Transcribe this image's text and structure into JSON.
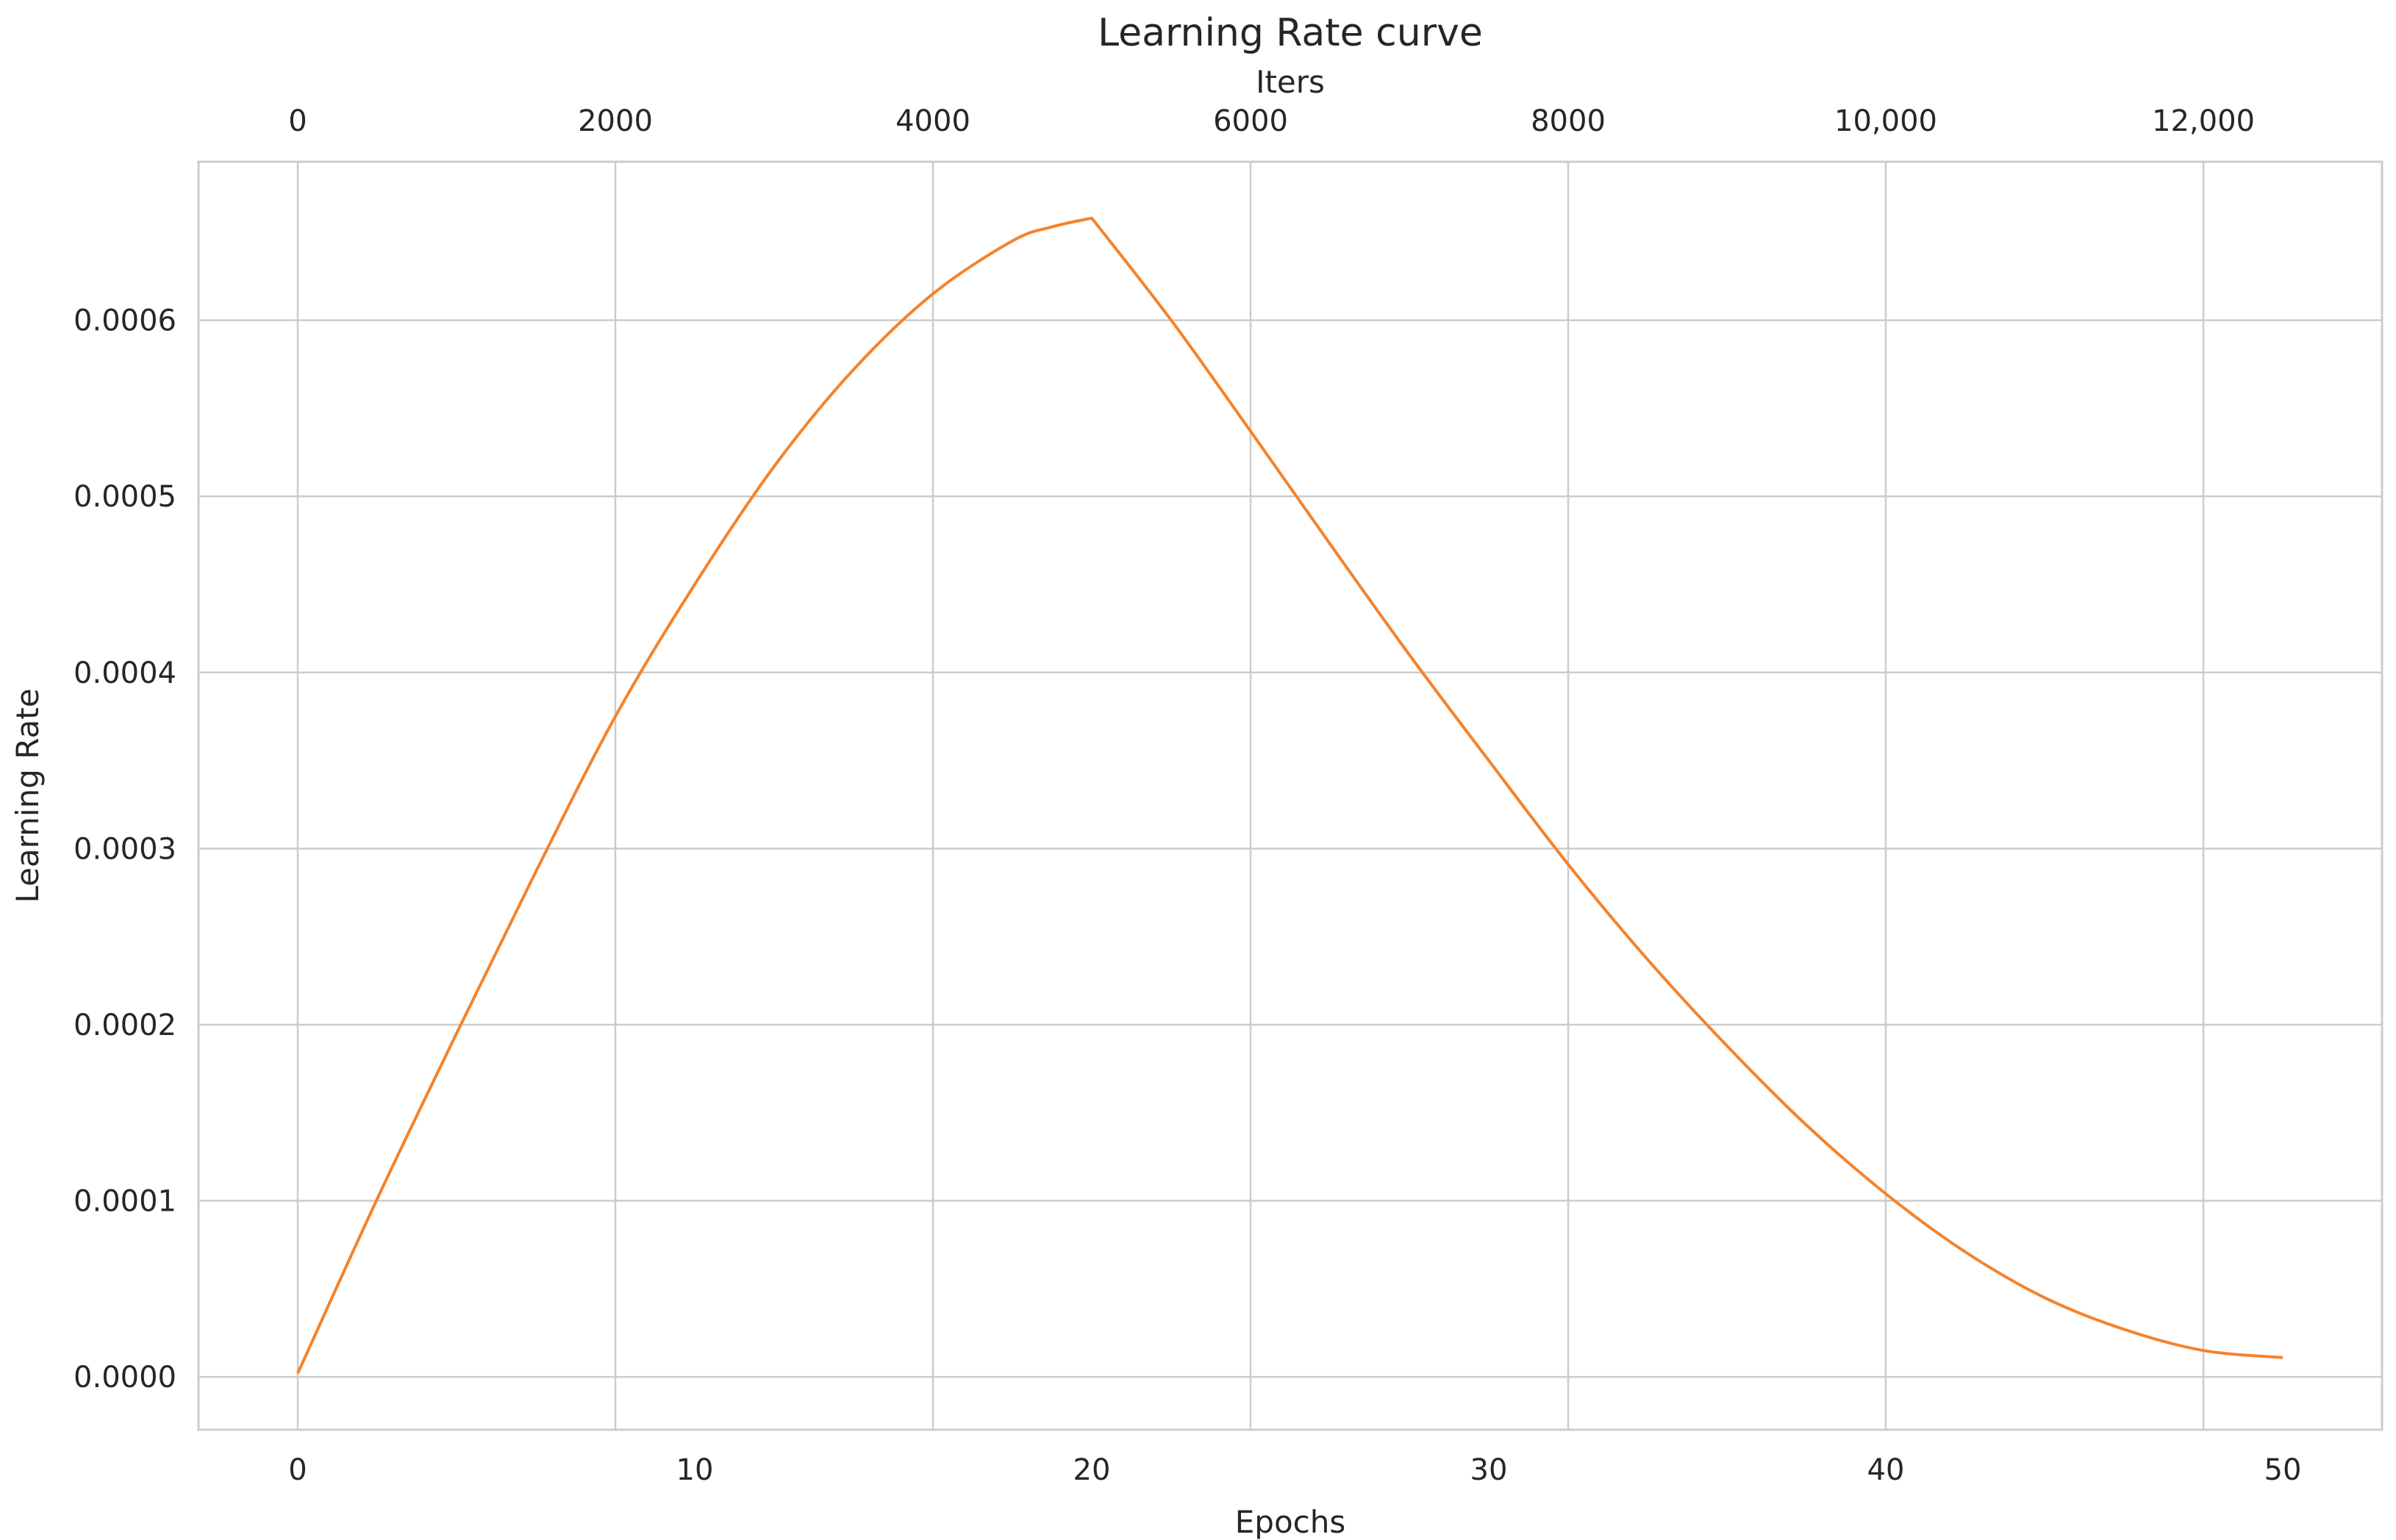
{
  "chart_data": {
    "type": "line",
    "title": "Learning Rate curve",
    "xlabel": "Epochs",
    "x2label": "Iters",
    "ylabel": "Learning Rate",
    "xlim": [
      -2.5,
      52.5
    ],
    "x2lim": [
      -625,
      13125
    ],
    "ylim": [
      -3e-05,
      0.00069
    ],
    "x_ticks": [
      0,
      10,
      20,
      30,
      40,
      50
    ],
    "x_tick_labels": [
      "0",
      "10",
      "20",
      "30",
      "40",
      "50"
    ],
    "x2_ticks": [
      0,
      2000,
      4000,
      6000,
      8000,
      10000,
      12000
    ],
    "x2_tick_labels": [
      "0",
      "2000",
      "4000",
      "6000",
      "8000",
      "10,000",
      "12,000"
    ],
    "y_ticks": [
      0,
      0.0001,
      0.0002,
      0.0003,
      0.0004,
      0.0005,
      0.0006
    ],
    "y_tick_labels": [
      "0.0000",
      "0.0001",
      "0.0002",
      "0.0003",
      "0.0004",
      "0.0005",
      "0.0006"
    ],
    "grid": true,
    "line_color": "#F5822A",
    "grid_color": "#CCCCCC",
    "series": [
      {
        "x": [
          0,
          2,
          4,
          6,
          8,
          10,
          12,
          14,
          16,
          18,
          19,
          20,
          22,
          24,
          26,
          28,
          30,
          32,
          34,
          36,
          38,
          40,
          42,
          44,
          46,
          48,
          50
        ],
        "y": [
          2e-06,
          0.000101,
          0.000195,
          0.000287,
          0.000375,
          0.00045,
          0.000517,
          0.000572,
          0.000615,
          0.000645,
          0.000653,
          0.000658,
          0.0006,
          0.000537,
          0.000473,
          0.00041,
          0.00035,
          0.000291,
          0.000237,
          0.000188,
          0.000143,
          0.000104,
          7.1e-05,
          4.5e-05,
          2.7e-05,
          1.5e-05,
          1.1e-05
        ]
      }
    ]
  }
}
